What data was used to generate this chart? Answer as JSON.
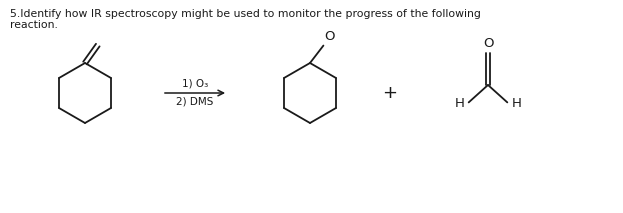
{
  "title_line1": "5.Identify how IR spectroscopy might be used to monitor the progress of the following",
  "title_line2": "reaction.",
  "background_color": "#ffffff",
  "text_color": "#1a1a1a",
  "figsize": [
    6.23,
    2.13
  ],
  "dpi": 100,
  "reagent_line1": "1) O₃",
  "reagent_line2": "2) DMS",
  "plus_sign": "+",
  "lw": 1.3
}
